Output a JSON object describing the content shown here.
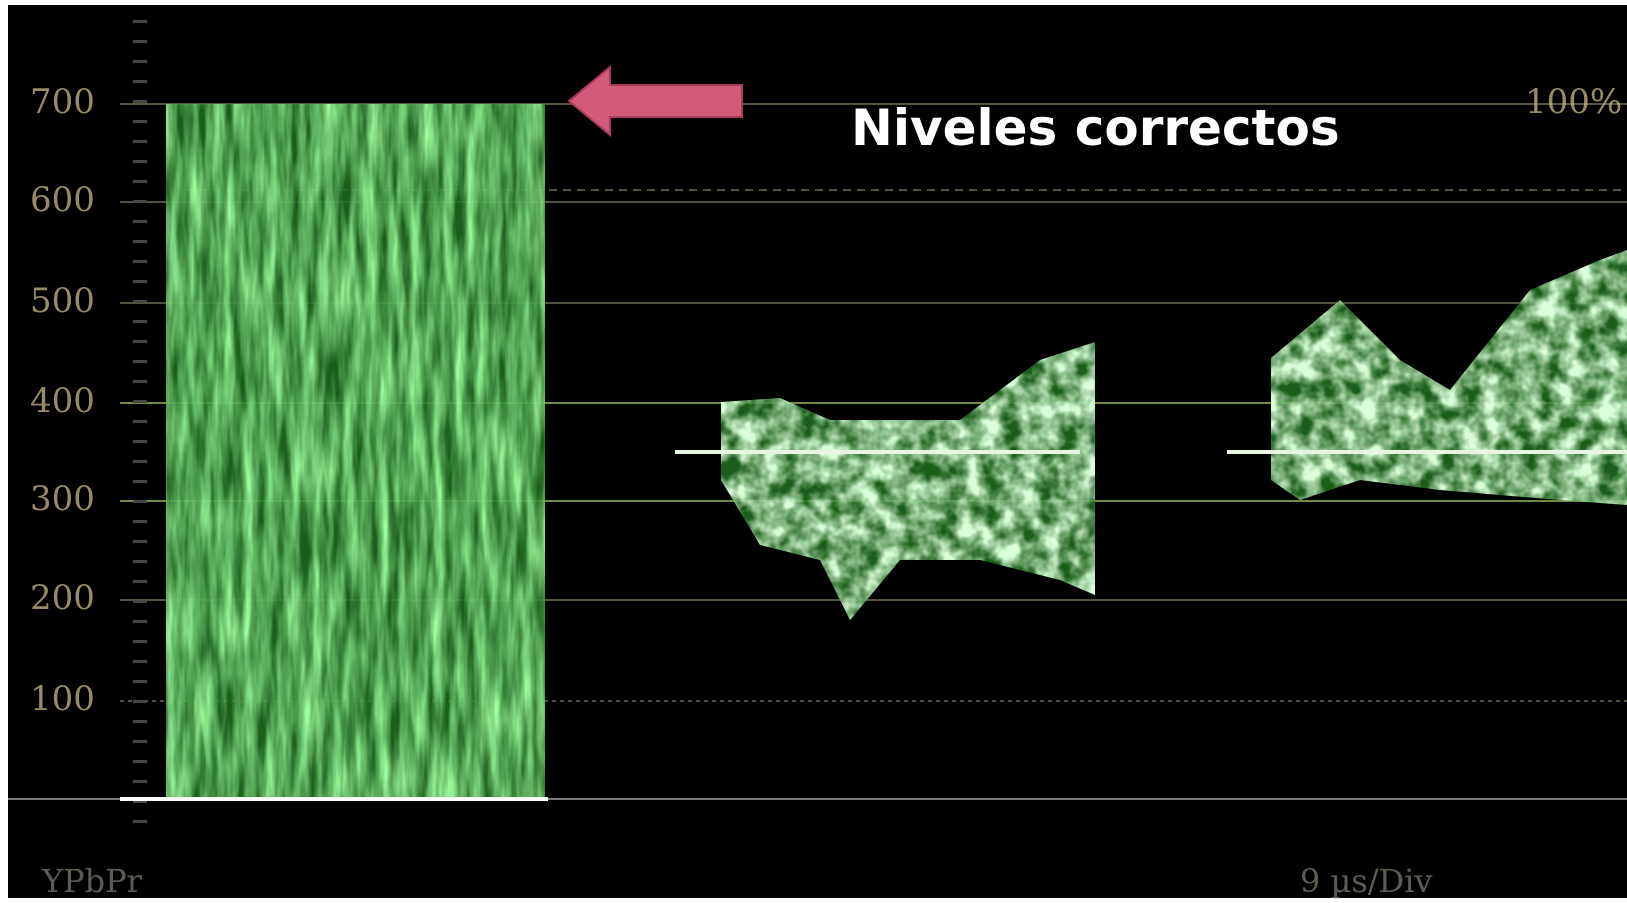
{
  "scale": {
    "labels": [
      "700",
      "600",
      "500",
      "400",
      "300",
      "200",
      "100"
    ]
  },
  "right_label": "100%",
  "annotation": "Niveles correctos",
  "format": "YPbPr",
  "timebase": "9 µs/Div"
}
